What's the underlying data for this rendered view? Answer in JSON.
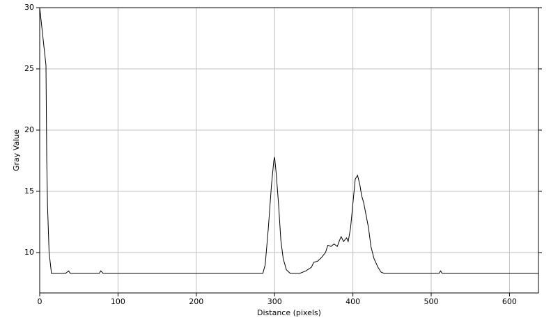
{
  "chart_data": {
    "type": "line",
    "x_label": "Distance (pixels)",
    "y_label": "Gray Value",
    "x": [
      0,
      8,
      9,
      10,
      12,
      15,
      33,
      37,
      39,
      76,
      78,
      81,
      285,
      288,
      292,
      296,
      299,
      300,
      302,
      305,
      308,
      311,
      315,
      320,
      332,
      340,
      347,
      350,
      355,
      360,
      365,
      368,
      372,
      376,
      380,
      383,
      385,
      388,
      392,
      394,
      397,
      400,
      403,
      406,
      409,
      411,
      414,
      417,
      420,
      423,
      427,
      432,
      436,
      440,
      510,
      512,
      514,
      637
    ],
    "series": [
      {
        "color": "#000000",
        "values": [
          30,
          25.3,
          17.5,
          13.8,
          10,
          8.3,
          8.3,
          8.5,
          8.3,
          8.3,
          8.5,
          8.3,
          8.3,
          9,
          12,
          15.5,
          17.5,
          17.8,
          16.5,
          14,
          11,
          9.5,
          8.6,
          8.3,
          8.3,
          8.5,
          8.8,
          9.2,
          9.3,
          9.6,
          10,
          10.6,
          10.5,
          10.7,
          10.5,
          11,
          11.3,
          10.9,
          11.2,
          10.9,
          12,
          14,
          16,
          16.3,
          15.5,
          14.7,
          14,
          13,
          12,
          10.5,
          9.5,
          8.8,
          8.4,
          8.3,
          8.3,
          8.5,
          8.3,
          8.3
        ]
      }
    ],
    "xlim": [
      0,
      637
    ],
    "ylim": [
      6.7,
      30
    ],
    "xticks": [
      0,
      100,
      200,
      300,
      400,
      500,
      600
    ],
    "yticks": [
      10,
      15,
      20,
      25,
      30
    ],
    "grid": true
  }
}
